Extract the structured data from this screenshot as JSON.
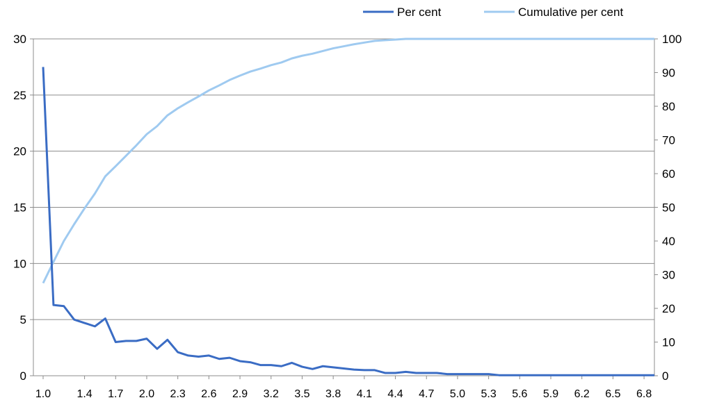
{
  "chart_data": {
    "type": "line",
    "title": "",
    "xlabel": "",
    "ylabel": "",
    "ylabel_right": "",
    "legend_position": "top-right",
    "grid": true,
    "ylim_left": [
      0,
      30
    ],
    "ylim_right": [
      0,
      100
    ],
    "y_ticks_left": [
      "0",
      "5",
      "10",
      "15",
      "20",
      "25",
      "30"
    ],
    "y_ticks_right": [
      "0",
      "10",
      "20",
      "30",
      "40",
      "50",
      "60",
      "70",
      "80",
      "90",
      "100"
    ],
    "x": [
      1.0,
      1.1,
      1.2,
      1.3,
      1.4,
      1.5,
      1.6,
      1.7,
      1.8,
      1.9,
      2.0,
      2.1,
      2.2,
      2.3,
      2.4,
      2.5,
      2.6,
      2.7,
      2.8,
      2.9,
      3.0,
      3.1,
      3.2,
      3.3,
      3.4,
      3.5,
      3.6,
      3.7,
      3.8,
      3.9,
      4.0,
      4.1,
      4.2,
      4.3,
      4.4,
      4.5,
      4.6,
      4.7,
      4.8,
      4.9,
      5.0,
      5.1,
      5.2,
      5.3,
      5.4,
      5.5,
      5.6,
      5.7,
      5.8,
      5.9,
      6.0,
      6.1,
      6.2,
      6.3,
      6.4,
      6.5,
      6.6,
      6.7,
      6.8,
      6.9
    ],
    "x_tick_labels": [
      "1.0",
      "1.4",
      "1.7",
      "2.0",
      "2.3",
      "2.6",
      "2.9",
      "3.2",
      "3.5",
      "3.8",
      "4.1",
      "4.4",
      "4.7",
      "5.0",
      "5.3",
      "5.6",
      "5.9",
      "6.2",
      "6.5",
      "6.8"
    ],
    "series": [
      {
        "name": "Per cent",
        "axis": "left",
        "color": "#3a6cc4",
        "values": [
          27.5,
          6.3,
          6.2,
          5.0,
          4.7,
          4.4,
          5.1,
          3.0,
          3.1,
          3.1,
          3.3,
          2.4,
          3.2,
          2.1,
          1.8,
          1.7,
          1.8,
          1.5,
          1.6,
          1.3,
          1.2,
          0.95,
          0.95,
          0.85,
          1.15,
          0.8,
          0.6,
          0.85,
          0.75,
          0.65,
          0.55,
          0.5,
          0.5,
          0.25,
          0.25,
          0.35,
          0.25,
          0.25,
          0.25,
          0.15,
          0.15,
          0.15,
          0.15,
          0.15,
          0.05,
          0.05,
          0.05,
          0.05,
          0.05,
          0.05,
          0.05,
          0.05,
          0.05,
          0.05,
          0.05,
          0.05,
          0.05,
          0.05,
          0.05,
          0.05
        ]
      },
      {
        "name": "Cumulative per cent",
        "axis": "right",
        "color": "#9fcaf0",
        "values": [
          27.5,
          33.8,
          40.0,
          45.0,
          49.7,
          54.1,
          59.2,
          62.2,
          65.3,
          68.4,
          71.7,
          74.1,
          77.3,
          79.4,
          81.2,
          82.9,
          84.7,
          86.2,
          87.8,
          89.1,
          90.3,
          91.2,
          92.2,
          93.0,
          94.2,
          95.0,
          95.6,
          96.4,
          97.2,
          97.8,
          98.4,
          98.9,
          99.4,
          99.6,
          99.8,
          100.1,
          100.3,
          100.5,
          100.7,
          100.8,
          101.0,
          101.1,
          101.3,
          101.4,
          101.4,
          101.5,
          101.5,
          101.6,
          101.6,
          101.7,
          101.7,
          101.8,
          101.8,
          101.9,
          101.9,
          102.0,
          102.0,
          102.1,
          102.1,
          102.2
        ]
      }
    ]
  }
}
